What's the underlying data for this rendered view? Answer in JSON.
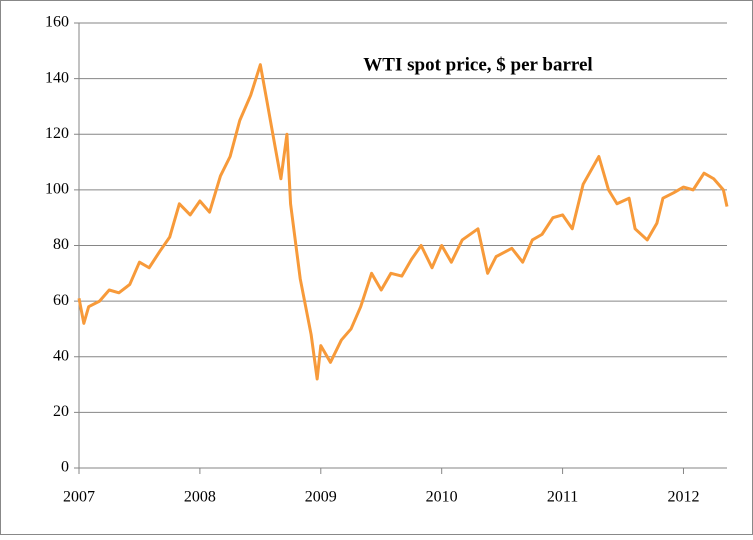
{
  "chart_data": {
    "type": "line",
    "title": "WTI spot price, $ per barrel",
    "x": [
      2007.0,
      2007.04,
      2007.08,
      2007.17,
      2007.25,
      2007.33,
      2007.42,
      2007.5,
      2007.58,
      2007.67,
      2007.75,
      2007.83,
      2007.92,
      2008.0,
      2008.08,
      2008.17,
      2008.25,
      2008.33,
      2008.42,
      2008.5,
      2008.55,
      2008.62,
      2008.67,
      2008.72,
      2008.75,
      2008.83,
      2008.92,
      2008.97,
      2009.0,
      2009.08,
      2009.17,
      2009.25,
      2009.33,
      2009.42,
      2009.5,
      2009.58,
      2009.67,
      2009.75,
      2009.83,
      2009.92,
      2010.0,
      2010.08,
      2010.17,
      2010.3,
      2010.38,
      2010.45,
      2010.58,
      2010.67,
      2010.75,
      2010.83,
      2010.92,
      2011.0,
      2011.08,
      2011.17,
      2011.3,
      2011.38,
      2011.45,
      2011.55,
      2011.6,
      2011.7,
      2011.78,
      2011.83,
      2011.92,
      2012.0,
      2012.08,
      2012.17,
      2012.25,
      2012.33,
      2012.36
    ],
    "series": [
      {
        "name": "WTI",
        "color": "#f79a3a",
        "values": [
          61,
          52,
          58,
          60,
          64,
          63,
          66,
          74,
          72,
          78,
          83,
          95,
          91,
          96,
          92,
          105,
          112,
          125,
          134,
          145,
          133,
          116,
          104,
          120,
          95,
          68,
          48,
          32,
          44,
          38,
          46,
          50,
          58,
          70,
          64,
          70,
          69,
          75,
          80,
          72,
          80,
          74,
          82,
          86,
          70,
          76,
          79,
          74,
          82,
          84,
          90,
          91,
          86,
          102,
          112,
          100,
          95,
          97,
          86,
          82,
          88,
          97,
          99,
          101,
          100,
          106,
          104,
          100,
          94
        ]
      }
    ],
    "xlim": [
      2007,
      2012.36
    ],
    "xticks": [
      2007,
      2008,
      2009,
      2010,
      2011,
      2012
    ],
    "ylim": [
      0,
      160
    ],
    "yticks": [
      0,
      20,
      40,
      60,
      80,
      100,
      120,
      140,
      160
    ],
    "grid": true
  }
}
